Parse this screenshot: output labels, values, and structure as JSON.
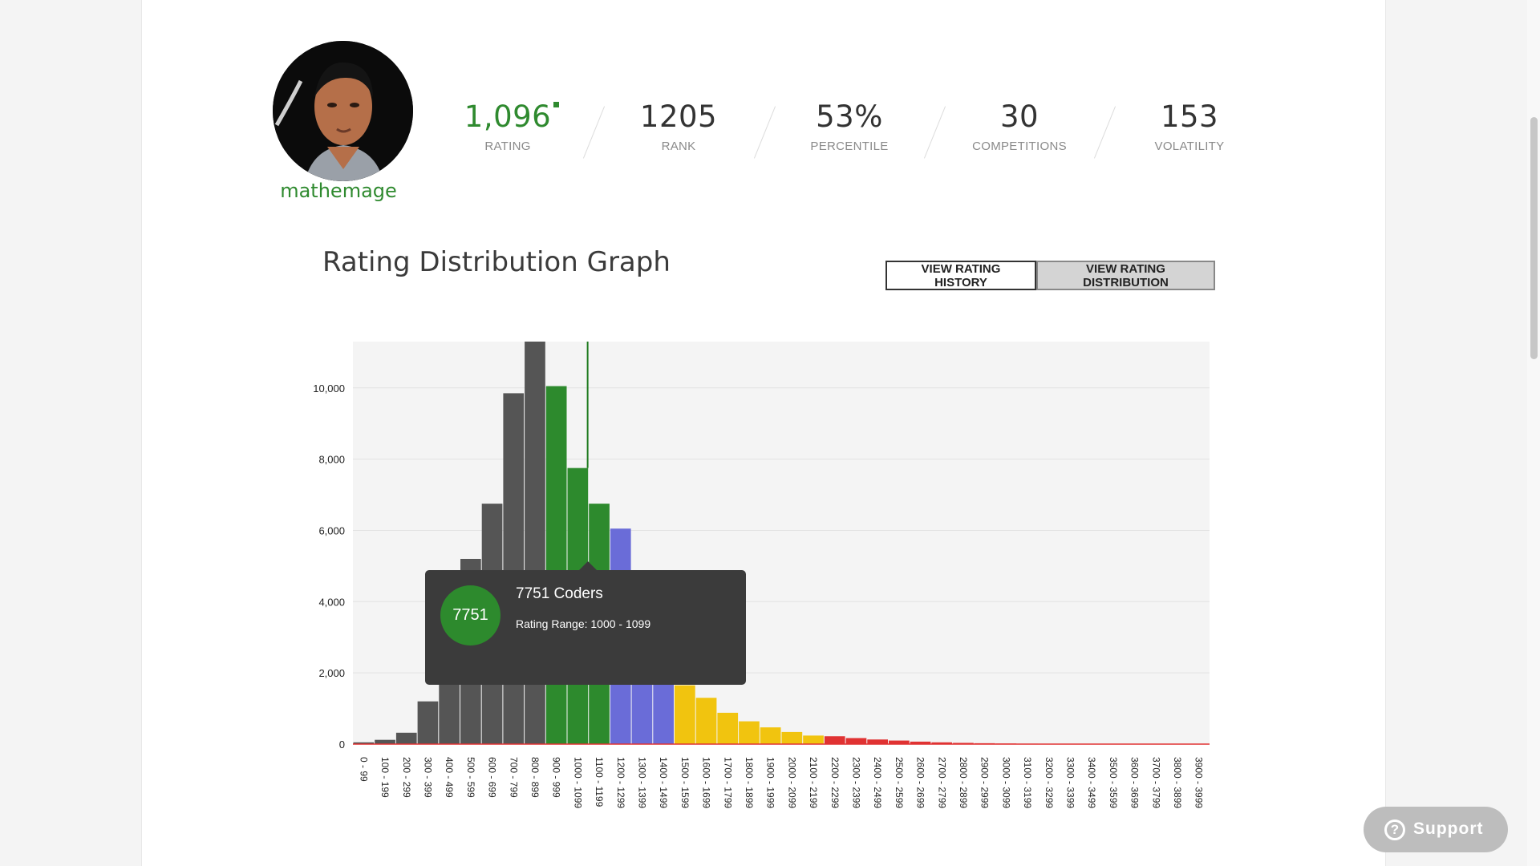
{
  "profile": {
    "handle": "mathemage",
    "avatar_alt": "profile photo"
  },
  "stats": [
    {
      "id": "rating",
      "value": "1,096",
      "label": "RATING"
    },
    {
      "id": "rank",
      "value": "1205",
      "label": "RANK"
    },
    {
      "id": "percentile",
      "value": "53%",
      "label": "PERCENTILE"
    },
    {
      "id": "competitions",
      "value": "30",
      "label": "COMPETITIONS"
    },
    {
      "id": "volatility",
      "value": "153",
      "label": "VOLATILITY"
    }
  ],
  "graph": {
    "title": "Rating Distribution Graph",
    "buttons": {
      "history": "VIEW RATING HISTORY",
      "distribution": "VIEW RATING DISTRIBUTION"
    }
  },
  "tooltip": {
    "count": "7751",
    "title": "7751 Coders",
    "range": "Rating Range: 1000 - 1099"
  },
  "support": {
    "label": "Support"
  },
  "colors": {
    "accent_green": "#2f8a2f",
    "gray": "#555555",
    "green": "#2d8a2d",
    "blue": "#6a6cd8",
    "yellow": "#f1c40f",
    "red": "#e03232"
  },
  "chart_data": {
    "type": "bar",
    "title": "",
    "xlabel": "",
    "ylabel": "",
    "ylim": [
      0,
      11300
    ],
    "yticks": [
      "0",
      "2,000",
      "4,000",
      "6,000",
      "8,000",
      "10,000"
    ],
    "ytick_values": [
      0,
      2000,
      4000,
      6000,
      8000,
      10000
    ],
    "grid": true,
    "marker_rating": 1096,
    "categories": [
      "0 - 99",
      "100 - 199",
      "200 - 299",
      "300 - 399",
      "400 - 499",
      "500 - 599",
      "600 - 699",
      "700 - 799",
      "800 - 899",
      "900 - 999",
      "1000 - 1099",
      "1100 - 1199",
      "1200 - 1299",
      "1300 - 1399",
      "1400 - 1499",
      "1500 - 1599",
      "1600 - 1699",
      "1700 - 1799",
      "1800 - 1899",
      "1900 - 1999",
      "2000 - 2099",
      "2100 - 2199",
      "2200 - 2299",
      "2300 - 2399",
      "2400 - 2499",
      "2500 - 2599",
      "2600 - 2699",
      "2700 - 2799",
      "2800 - 2899",
      "2900 - 2999",
      "3000 - 3099",
      "3100 - 3199",
      "3200 - 3299",
      "3300 - 3399",
      "3400 - 3499",
      "3500 - 3599",
      "3600 - 3699",
      "3700 - 3799",
      "3800 - 3899",
      "3900 - 3999"
    ],
    "values": [
      50,
      120,
      320,
      1200,
      3200,
      5200,
      6750,
      9850,
      11300,
      10050,
      7751,
      6750,
      6050,
      3700,
      2500,
      1650,
      1300,
      880,
      640,
      470,
      340,
      240,
      220,
      170,
      130,
      100,
      70,
      50,
      35,
      25,
      18,
      12,
      9,
      6,
      4,
      3,
      2,
      2,
      1,
      1
    ],
    "bar_colors": [
      "gray",
      "gray",
      "gray",
      "gray",
      "gray",
      "gray",
      "gray",
      "gray",
      "gray",
      "green",
      "green",
      "green",
      "blue",
      "blue",
      "blue",
      "yellow",
      "yellow",
      "yellow",
      "yellow",
      "yellow",
      "yellow",
      "yellow",
      "red",
      "red",
      "red",
      "red",
      "red",
      "red",
      "red",
      "red",
      "red",
      "red",
      "red",
      "red",
      "red",
      "red",
      "red",
      "red",
      "red",
      "red"
    ]
  }
}
